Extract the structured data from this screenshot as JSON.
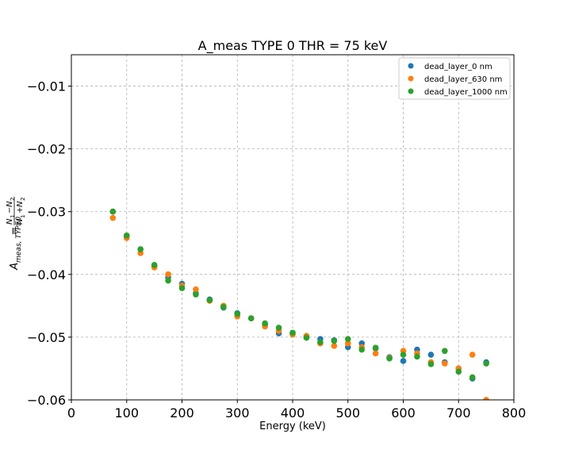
{
  "chart_data": {
    "type": "scatter",
    "title": "A_meas TYPE 0 THR = 75 keV",
    "xlabel": "Energy (keV)",
    "ylabel_parts": {
      "lhs": "A",
      "lhs_sub": "meas, TYPE0",
      "eq": "=",
      "num": "N",
      "num_sub1": "1",
      "minus": "−",
      "num_sub2": "2",
      "den_plus": "+"
    },
    "xlim": [
      0,
      800
    ],
    "ylim": [
      -0.06,
      -0.005
    ],
    "x_ticks": [
      0,
      100,
      200,
      300,
      400,
      500,
      600,
      700,
      800
    ],
    "x_tick_labels": [
      "0",
      "100",
      "200",
      "300",
      "400",
      "500",
      "600",
      "700",
      "800"
    ],
    "y_ticks": [
      -0.06,
      -0.05,
      -0.04,
      -0.03,
      -0.02,
      -0.01
    ],
    "y_tick_labels": [
      "−0.06",
      "−0.05",
      "−0.04",
      "−0.03",
      "−0.02",
      "−0.01"
    ],
    "grid": true,
    "legend_position": "top-right",
    "series": [
      {
        "name": "dead_layer_0 nm",
        "color": "#1f77b4",
        "points": [
          [
            75,
            -0.03
          ],
          [
            100,
            -0.034
          ],
          [
            125,
            -0.036
          ],
          [
            150,
            -0.0387
          ],
          [
            175,
            -0.0405
          ],
          [
            200,
            -0.0415
          ],
          [
            225,
            -0.043
          ],
          [
            250,
            -0.044
          ],
          [
            275,
            -0.0453
          ],
          [
            300,
            -0.0462
          ],
          [
            325,
            -0.047
          ],
          [
            350,
            -0.048
          ],
          [
            375,
            -0.0494
          ],
          [
            400,
            -0.0494
          ],
          [
            425,
            -0.05
          ],
          [
            450,
            -0.0503
          ],
          [
            475,
            -0.0505
          ],
          [
            500,
            -0.0516
          ],
          [
            525,
            -0.051
          ],
          [
            550,
            -0.0518
          ],
          [
            575,
            -0.0532
          ],
          [
            600,
            -0.0538
          ],
          [
            625,
            -0.052
          ],
          [
            650,
            -0.0528
          ],
          [
            675,
            -0.054
          ],
          [
            700,
            -0.055
          ],
          [
            725,
            -0.0566
          ],
          [
            750,
            -0.054
          ]
        ]
      },
      {
        "name": "dead_layer_630 nm",
        "color": "#ff7f0e",
        "points": [
          [
            75,
            -0.031
          ],
          [
            100,
            -0.0342
          ],
          [
            125,
            -0.0366
          ],
          [
            150,
            -0.0389
          ],
          [
            175,
            -0.04
          ],
          [
            200,
            -0.0418
          ],
          [
            225,
            -0.0424
          ],
          [
            250,
            -0.0442
          ],
          [
            275,
            -0.045
          ],
          [
            300,
            -0.0467
          ],
          [
            325,
            -0.047
          ],
          [
            350,
            -0.0483
          ],
          [
            375,
            -0.049
          ],
          [
            400,
            -0.0496
          ],
          [
            425,
            -0.0498
          ],
          [
            450,
            -0.051
          ],
          [
            475,
            -0.0514
          ],
          [
            500,
            -0.051
          ],
          [
            525,
            -0.0516
          ],
          [
            550,
            -0.0526
          ],
          [
            575,
            -0.0533
          ],
          [
            600,
            -0.0522
          ],
          [
            625,
            -0.0526
          ],
          [
            650,
            -0.054
          ],
          [
            675,
            -0.0542
          ],
          [
            700,
            -0.055
          ],
          [
            725,
            -0.0528
          ],
          [
            750,
            -0.06
          ]
        ]
      },
      {
        "name": "dead_layer_1000 nm",
        "color": "#2ca02c",
        "points": [
          [
            75,
            -0.03
          ],
          [
            100,
            -0.0338
          ],
          [
            125,
            -0.036
          ],
          [
            150,
            -0.0385
          ],
          [
            175,
            -0.041
          ],
          [
            200,
            -0.0422
          ],
          [
            225,
            -0.0432
          ],
          [
            250,
            -0.0441
          ],
          [
            275,
            -0.0452
          ],
          [
            300,
            -0.0463
          ],
          [
            325,
            -0.047
          ],
          [
            350,
            -0.0478
          ],
          [
            375,
            -0.0485
          ],
          [
            400,
            -0.0493
          ],
          [
            425,
            -0.0501
          ],
          [
            450,
            -0.0508
          ],
          [
            475,
            -0.0506
          ],
          [
            500,
            -0.0503
          ],
          [
            525,
            -0.052
          ],
          [
            550,
            -0.0517
          ],
          [
            575,
            -0.0534
          ],
          [
            600,
            -0.0528
          ],
          [
            625,
            -0.0531
          ],
          [
            650,
            -0.0543
          ],
          [
            675,
            -0.0522
          ],
          [
            700,
            -0.0555
          ],
          [
            725,
            -0.0564
          ],
          [
            750,
            -0.0542
          ]
        ]
      }
    ]
  }
}
